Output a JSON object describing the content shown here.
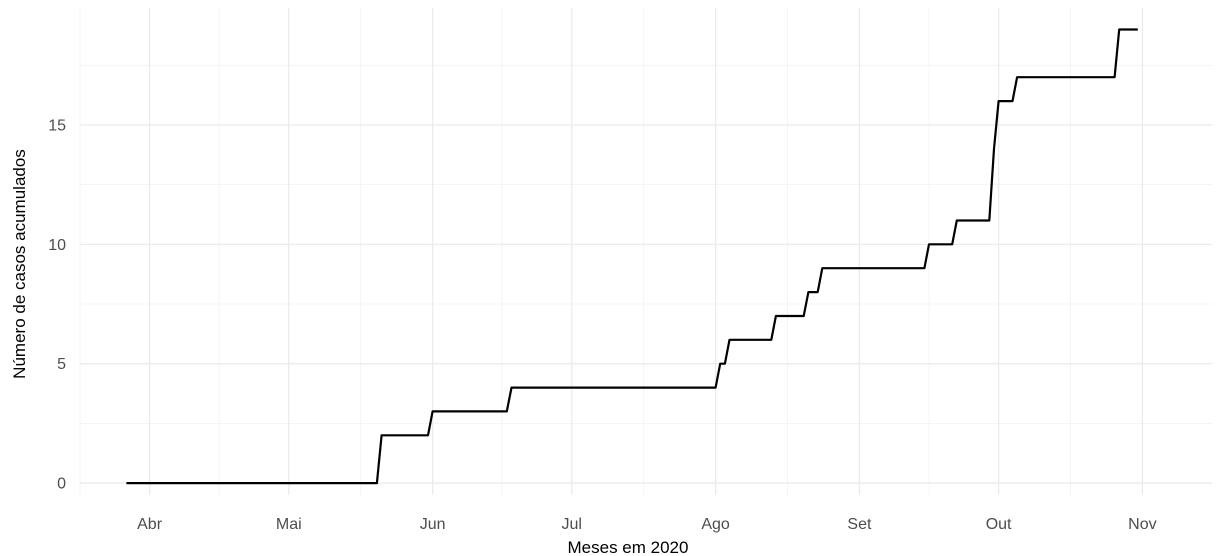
{
  "chart_data": {
    "type": "line",
    "xlabel": "Meses em 2020",
    "ylabel": "Número de casos acumulados",
    "x_ticks": [
      {
        "label": "Abr",
        "date": "2020-04-01"
      },
      {
        "label": "Mai",
        "date": "2020-05-01"
      },
      {
        "label": "Jun",
        "date": "2020-06-01"
      },
      {
        "label": "Jul",
        "date": "2020-07-01"
      },
      {
        "label": "Ago",
        "date": "2020-08-01"
      },
      {
        "label": "Set",
        "date": "2020-09-01"
      },
      {
        "label": "Out",
        "date": "2020-10-01"
      },
      {
        "label": "Nov",
        "date": "2020-11-01"
      }
    ],
    "y_ticks": [
      0,
      5,
      10,
      15
    ],
    "xlim": [
      "2020-03-17",
      "2020-11-16"
    ],
    "ylim": [
      -0.5,
      19.9
    ],
    "grid": true,
    "series": [
      {
        "color": "#000000",
        "points": [
          {
            "x": "2020-03-27",
            "y": 0
          },
          {
            "x": "2020-05-20",
            "y": 0
          },
          {
            "x": "2020-05-21",
            "y": 2
          },
          {
            "x": "2020-05-31",
            "y": 2
          },
          {
            "x": "2020-06-01",
            "y": 3
          },
          {
            "x": "2020-06-17",
            "y": 3
          },
          {
            "x": "2020-06-18",
            "y": 4
          },
          {
            "x": "2020-08-01",
            "y": 4
          },
          {
            "x": "2020-08-02",
            "y": 5
          },
          {
            "x": "2020-08-03",
            "y": 5
          },
          {
            "x": "2020-08-04",
            "y": 6
          },
          {
            "x": "2020-08-13",
            "y": 6
          },
          {
            "x": "2020-08-14",
            "y": 7
          },
          {
            "x": "2020-08-20",
            "y": 7
          },
          {
            "x": "2020-08-21",
            "y": 8
          },
          {
            "x": "2020-08-23",
            "y": 8
          },
          {
            "x": "2020-08-24",
            "y": 9
          },
          {
            "x": "2020-09-15",
            "y": 9
          },
          {
            "x": "2020-09-16",
            "y": 10
          },
          {
            "x": "2020-09-21",
            "y": 10
          },
          {
            "x": "2020-09-22",
            "y": 11
          },
          {
            "x": "2020-09-29",
            "y": 11
          },
          {
            "x": "2020-09-30",
            "y": 14
          },
          {
            "x": "2020-10-01",
            "y": 16
          },
          {
            "x": "2020-10-04",
            "y": 16
          },
          {
            "x": "2020-10-05",
            "y": 17
          },
          {
            "x": "2020-10-26",
            "y": 17
          },
          {
            "x": "2020-10-27",
            "y": 19
          },
          {
            "x": "2020-10-31",
            "y": 19
          }
        ]
      }
    ]
  }
}
